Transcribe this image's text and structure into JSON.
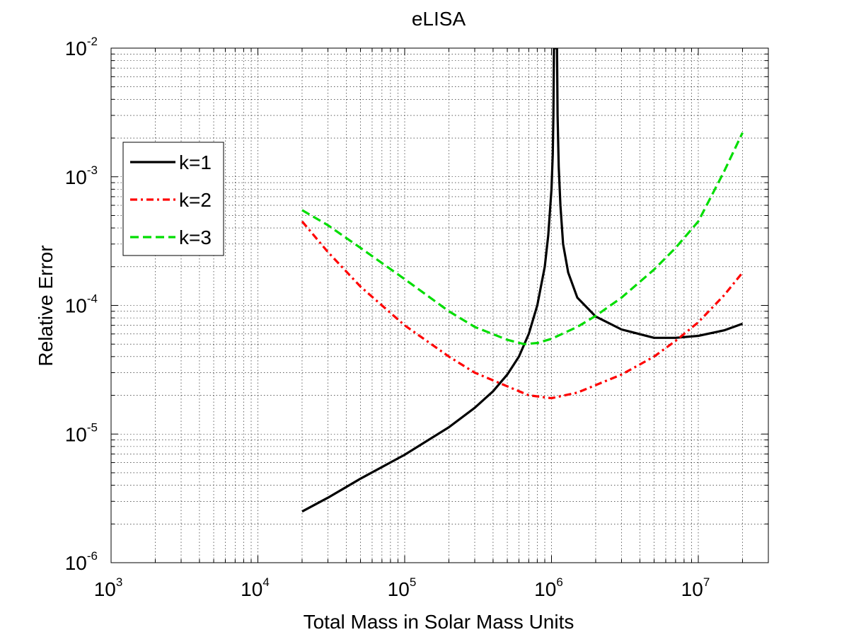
{
  "chart_data": {
    "type": "line",
    "title": "eLISA",
    "xlabel": "Total Mass in Solar Mass Units",
    "ylabel": "Relative Error",
    "xscale": "log",
    "yscale": "log",
    "xlim": [
      1000,
      30000000
    ],
    "ylim": [
      1e-06,
      0.01
    ],
    "grid": true,
    "legend_position": "upper-left",
    "x_tick_labels": [
      {
        "base": "10",
        "exp": "3",
        "value": 1000
      },
      {
        "base": "10",
        "exp": "4",
        "value": 10000
      },
      {
        "base": "10",
        "exp": "5",
        "value": 100000
      },
      {
        "base": "10",
        "exp": "6",
        "value": 1000000
      },
      {
        "base": "10",
        "exp": "7",
        "value": 10000000
      }
    ],
    "y_tick_labels": [
      {
        "base": "10",
        "exp": "-6",
        "value": 1e-06
      },
      {
        "base": "10",
        "exp": "-5",
        "value": 1e-05
      },
      {
        "base": "10",
        "exp": "-4",
        "value": 0.0001
      },
      {
        "base": "10",
        "exp": "-3",
        "value": 0.001
      },
      {
        "base": "10",
        "exp": "-2",
        "value": 0.01
      }
    ],
    "series": [
      {
        "name": "k=1",
        "color": "#000000",
        "dash": "solid",
        "x": [
          20000,
          30000,
          50000,
          100000,
          200000,
          300000,
          400000,
          500000,
          600000,
          700000,
          800000,
          900000,
          950000,
          1000000,
          1020000,
          1030000,
          1040000,
          1050000,
          1060000,
          1070000,
          1080000,
          1090000,
          1100000,
          1120000,
          1150000,
          1200000,
          1300000,
          1500000,
          2000000,
          3000000,
          5000000,
          7000000,
          10000000,
          15000000,
          20000000
        ],
        "y": [
          2.5e-06,
          3.2e-06,
          4.5e-06,
          6.9e-06,
          1.13e-05,
          1.6e-05,
          2.15e-05,
          2.9e-05,
          4e-05,
          6e-05,
          0.0001,
          0.0002,
          0.00035,
          0.0008,
          0.0015,
          0.003,
          0.01,
          0.01,
          0.01,
          0.01,
          0.01,
          0.01,
          0.003,
          0.0012,
          0.0006,
          0.0003,
          0.00018,
          0.000115,
          8.2e-05,
          6.5e-05,
          5.6e-05,
          5.6e-05,
          5.8e-05,
          6.4e-05,
          7.2e-05
        ]
      },
      {
        "name": "k=2",
        "color": "#ff0000",
        "dash": "dashdot",
        "x": [
          20000,
          30000,
          50000,
          100000,
          200000,
          300000,
          500000,
          700000,
          1000000,
          1500000,
          2000000,
          3000000,
          5000000,
          7000000,
          10000000,
          15000000,
          20000000
        ],
        "y": [
          0.00045,
          0.00026,
          0.00014,
          7e-05,
          4e-05,
          3e-05,
          2.35e-05,
          2e-05,
          1.9e-05,
          2.1e-05,
          2.4e-05,
          2.9e-05,
          4e-05,
          5.3e-05,
          7.4e-05,
          0.00012,
          0.00018
        ]
      },
      {
        "name": "k=3",
        "color": "#00dd00",
        "dash": "dashed",
        "x": [
          20000,
          30000,
          50000,
          100000,
          200000,
          300000,
          500000,
          650000,
          800000,
          1000000,
          1500000,
          2000000,
          3000000,
          5000000,
          7000000,
          10000000,
          15000000,
          20000000
        ],
        "y": [
          0.00055,
          0.00042,
          0.00028,
          0.00016,
          9e-05,
          6.8e-05,
          5.4e-05,
          5e-05,
          5.1e-05,
          5.5e-05,
          6.8e-05,
          8.3e-05,
          0.000115,
          0.00019,
          0.00028,
          0.00045,
          0.0011,
          0.0022
        ]
      }
    ]
  }
}
